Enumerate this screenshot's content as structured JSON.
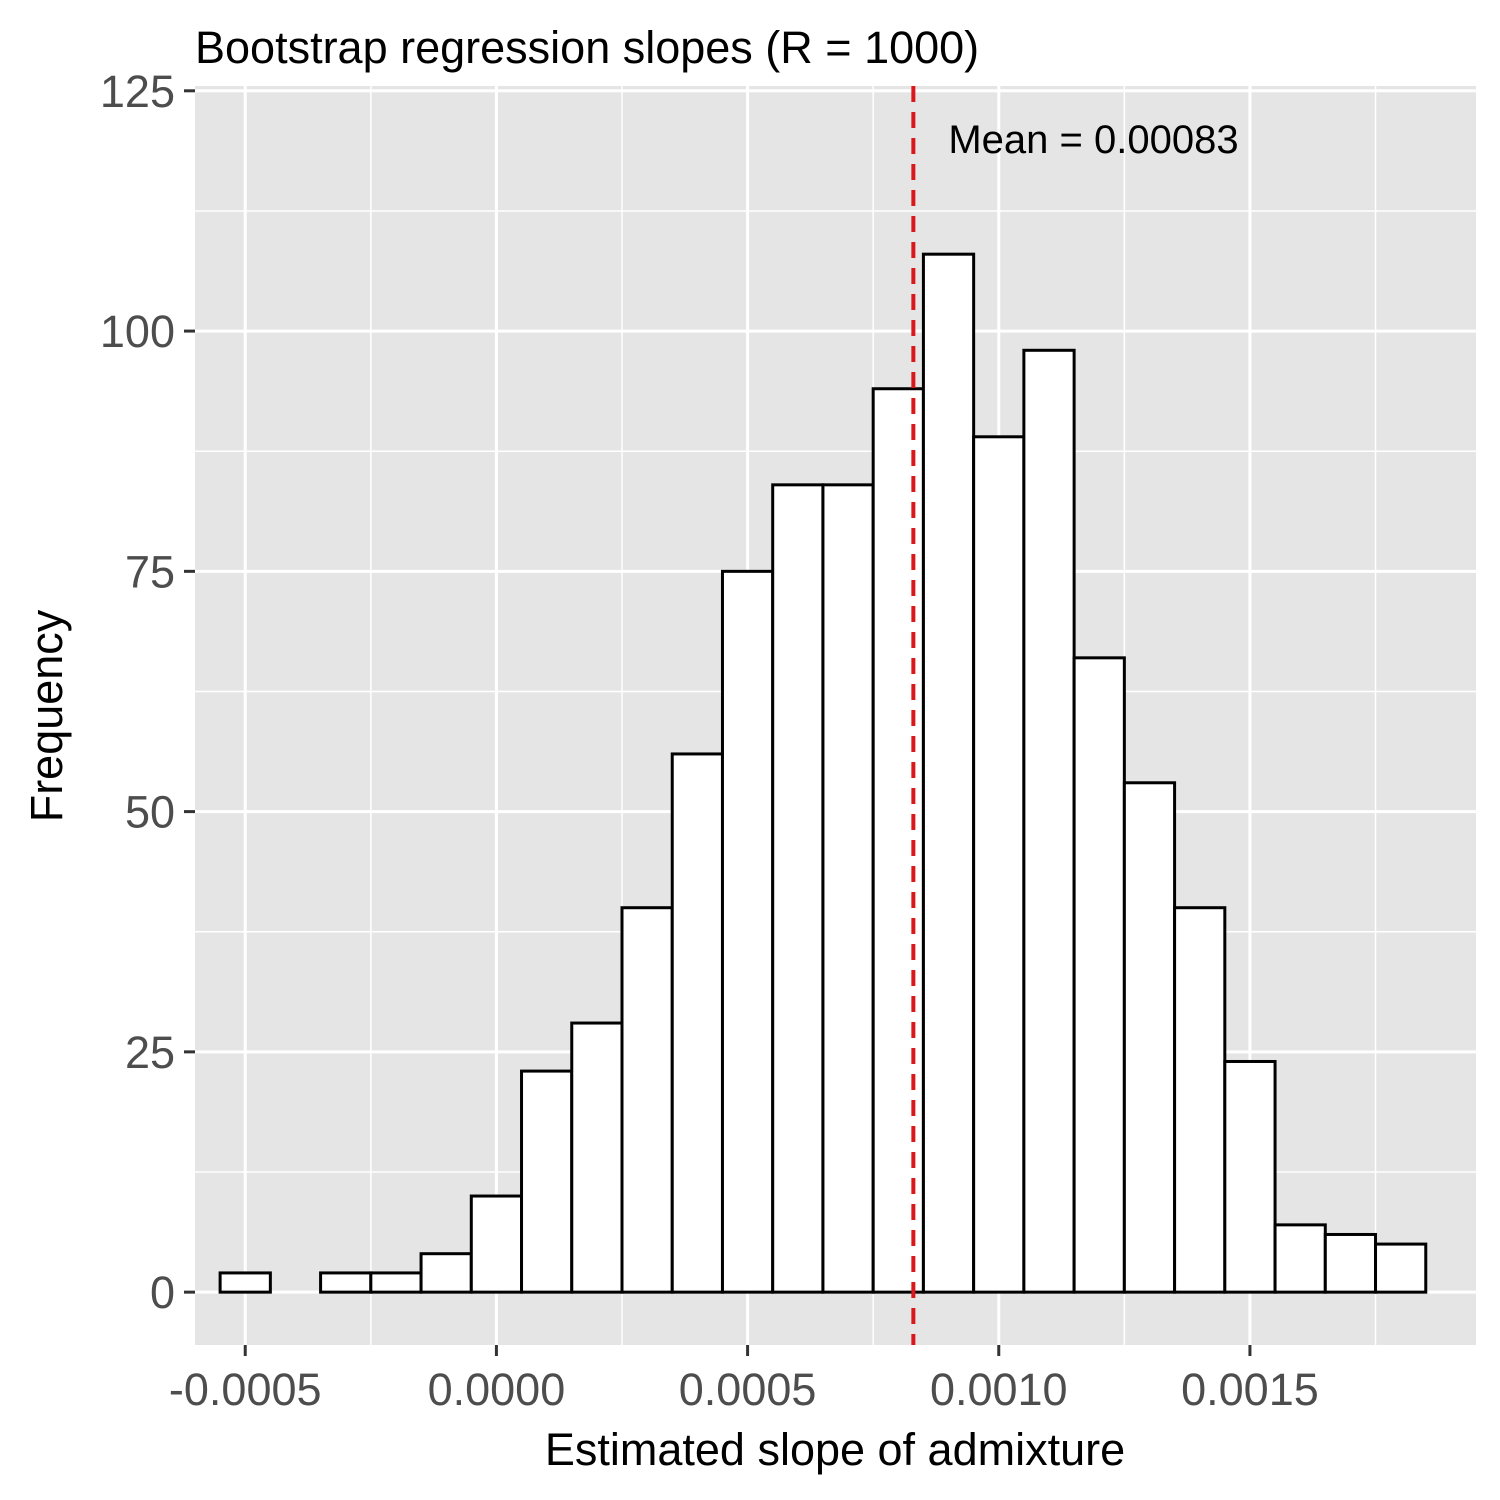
{
  "chart_data": {
    "type": "bar",
    "title": "Bootstrap regression slopes (R = 1000)",
    "xlabel": "Estimated slope of admixture",
    "ylabel": "Frequency",
    "xlim": [
      -0.0006,
      0.00195
    ],
    "ylim": [
      -5.5,
      125.5
    ],
    "bin_width": 0.0001,
    "x_ticks": [
      {
        "value": -0.0005,
        "label": "-0.0005"
      },
      {
        "value": 0.0,
        "label": "0.0000"
      },
      {
        "value": 0.0005,
        "label": "0.0005"
      },
      {
        "value": 0.001,
        "label": "0.0010"
      },
      {
        "value": 0.0015,
        "label": "0.0015"
      }
    ],
    "y_ticks": [
      {
        "value": 0,
        "label": "0"
      },
      {
        "value": 25,
        "label": "25"
      },
      {
        "value": 50,
        "label": "50"
      },
      {
        "value": 75,
        "label": "75"
      },
      {
        "value": 100,
        "label": "100"
      },
      {
        "value": 125,
        "label": "125"
      }
    ],
    "bins": [
      {
        "x": -0.0005,
        "count": 2
      },
      {
        "x": -0.0004,
        "count": 0
      },
      {
        "x": -0.0003,
        "count": 2
      },
      {
        "x": -0.0002,
        "count": 2
      },
      {
        "x": -0.0001,
        "count": 4
      },
      {
        "x": 0.0,
        "count": 10
      },
      {
        "x": 0.0001,
        "count": 23
      },
      {
        "x": 0.0002,
        "count": 28
      },
      {
        "x": 0.0003,
        "count": 40
      },
      {
        "x": 0.0004,
        "count": 56
      },
      {
        "x": 0.0005,
        "count": 75
      },
      {
        "x": 0.0006,
        "count": 84
      },
      {
        "x": 0.0007,
        "count": 84
      },
      {
        "x": 0.0008,
        "count": 94
      },
      {
        "x": 0.0009,
        "count": 108
      },
      {
        "x": 0.001,
        "count": 89
      },
      {
        "x": 0.0011,
        "count": 98
      },
      {
        "x": 0.0012,
        "count": 66
      },
      {
        "x": 0.0013,
        "count": 53
      },
      {
        "x": 0.0014,
        "count": 40
      },
      {
        "x": 0.0015,
        "count": 24
      },
      {
        "x": 0.0016,
        "count": 7
      },
      {
        "x": 0.0017,
        "count": 6
      },
      {
        "x": 0.0018,
        "count": 5
      }
    ],
    "mean_line": {
      "value": 0.00083,
      "label": "Mean = 0.00083",
      "color": "#d7191c",
      "style": "dashed"
    },
    "bar_fill": "#ffffff",
    "bar_stroke": "#000000",
    "panel_background": "#e5e5e5",
    "grid": true,
    "grid_color": "#ffffff"
  }
}
